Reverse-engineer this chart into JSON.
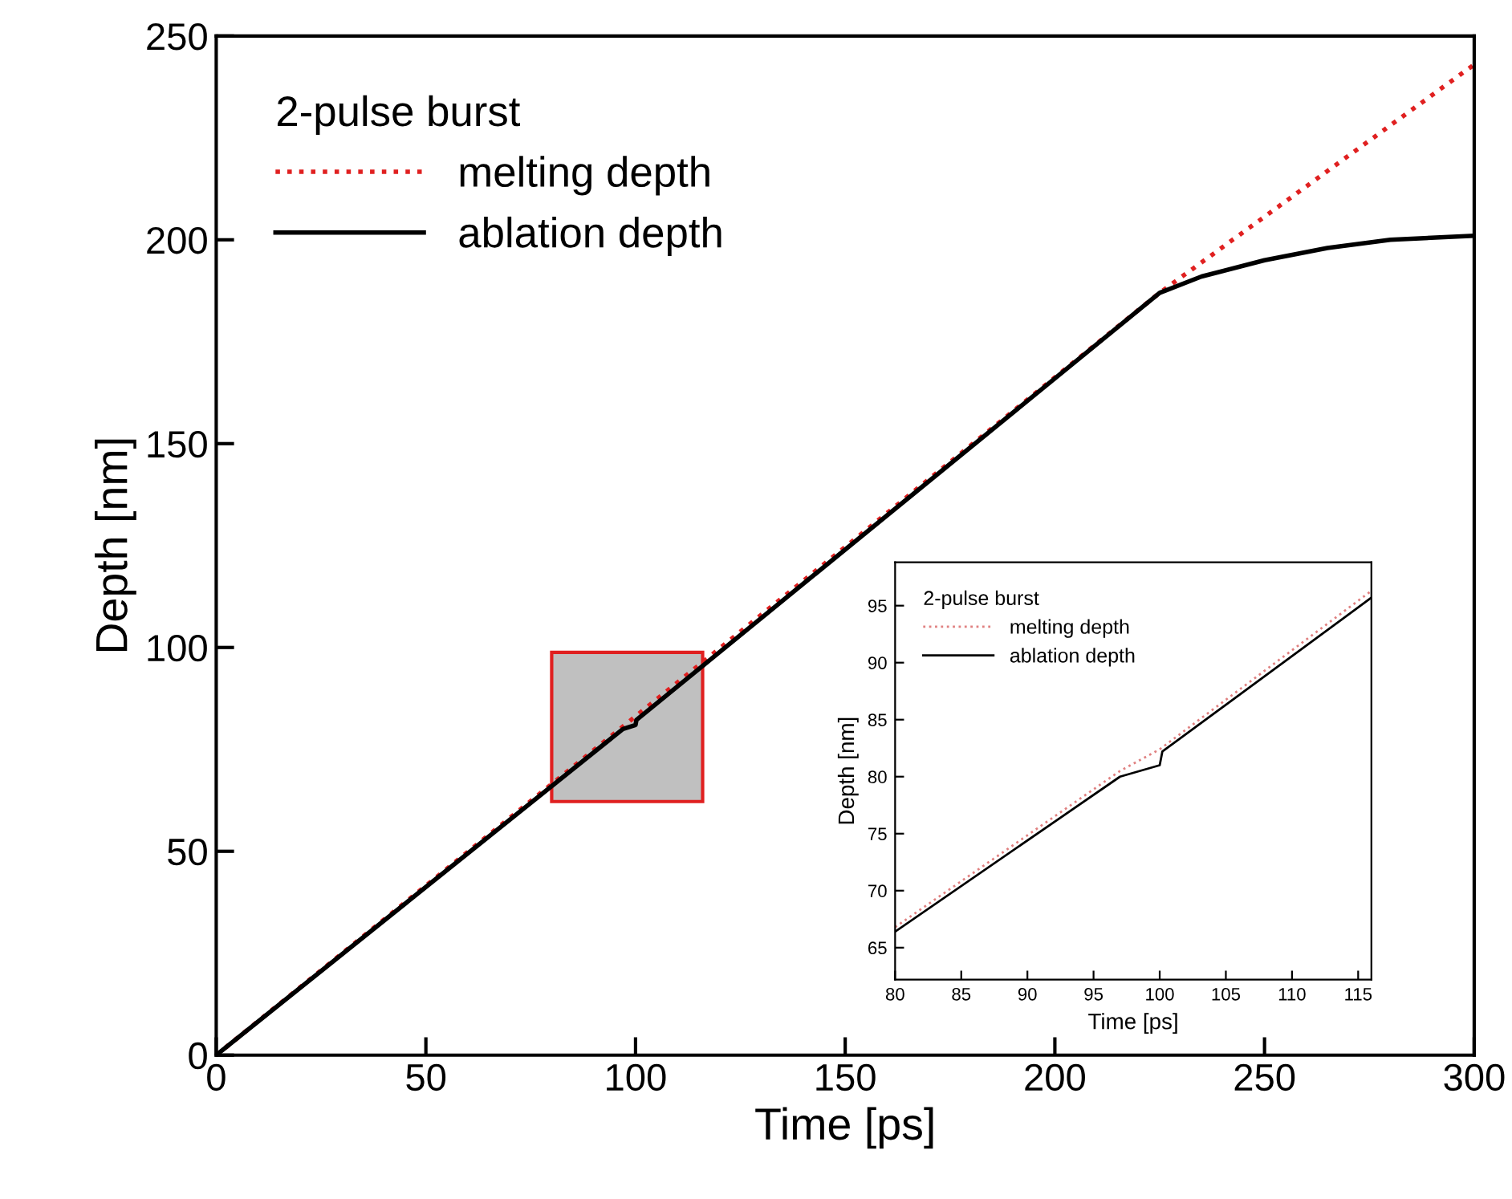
{
  "chart_data": [
    {
      "type": "line",
      "xlabel": "Time [ps]",
      "ylabel": "Depth [nm]",
      "legend_title": "2-pulse burst",
      "legend": "top left",
      "grid": false,
      "xlim": [
        0,
        300
      ],
      "ylim": [
        0,
        250
      ],
      "xticks": [
        0,
        50,
        100,
        150,
        200,
        250,
        300
      ],
      "yticks": [
        0,
        50,
        100,
        150,
        200,
        250
      ],
      "series": [
        {
          "name": "melting depth",
          "color": "#e02020",
          "line_style": "dotted",
          "x": [
            0,
            225,
            300
          ],
          "values": [
            0,
            187,
            243
          ]
        },
        {
          "name": "ablation depth",
          "color": "#000000",
          "line_style": "solid",
          "x": [
            0,
            97,
            100,
            100.2,
            225,
            235,
            250,
            265,
            280,
            300
          ],
          "values": [
            0,
            80,
            81,
            82.2,
            187,
            191,
            195,
            198,
            200,
            201
          ]
        }
      ]
    },
    {
      "type": "line",
      "xlabel": "Time [ps]",
      "ylabel": "Depth [nm]",
      "legend_title": "2-pulse burst",
      "legend": "top left",
      "grid": false,
      "xlim": [
        80,
        116
      ],
      "ylim": [
        62.2,
        98.8
      ],
      "xticks": [
        80,
        85,
        90,
        95,
        100,
        105,
        110,
        115
      ],
      "yticks": [
        65,
        70,
        75,
        80,
        85,
        90,
        95
      ],
      "series": [
        {
          "name": "melting depth",
          "color": "#e08080",
          "line_style": "dotted",
          "x": [
            80,
            97,
            100,
            116
          ],
          "values": [
            66.8,
            80.5,
            82.4,
            96.3
          ]
        },
        {
          "name": "ablation depth",
          "color": "#000000",
          "line_style": "solid",
          "x": [
            80,
            97,
            100,
            100.2,
            116
          ],
          "values": [
            66.4,
            80,
            81,
            82.2,
            95.7
          ]
        }
      ]
    }
  ]
}
